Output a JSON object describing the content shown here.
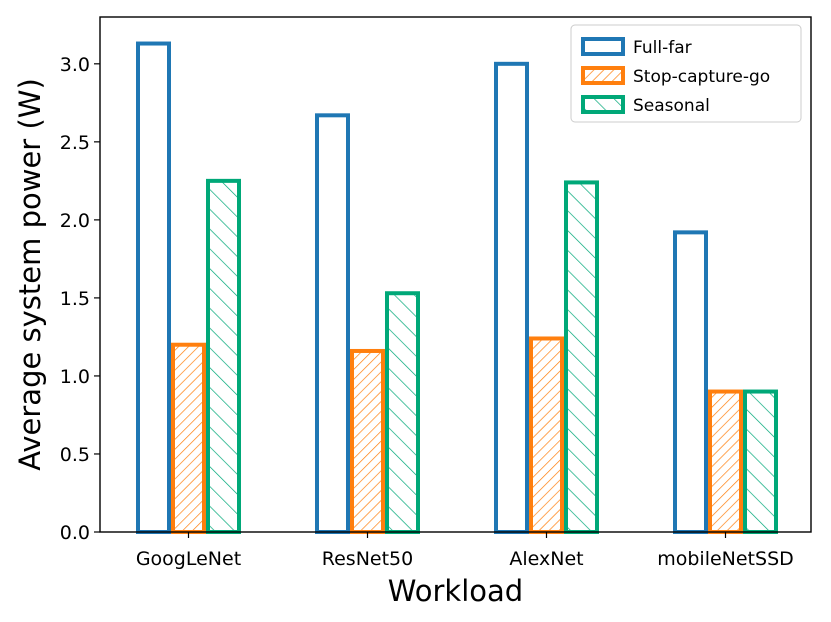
{
  "chart_data": {
    "type": "bar",
    "categories": [
      "GoogLeNet",
      "ResNet50",
      "AlexNet",
      "mobileNetSSD"
    ],
    "series": [
      {
        "name": "Full-far",
        "values": [
          3.13,
          2.67,
          3.0,
          1.92
        ],
        "color": "#1f77b4",
        "hatch": "none"
      },
      {
        "name": "Stop-capture-go",
        "values": [
          1.2,
          1.16,
          1.24,
          0.9
        ],
        "color": "#ff7f0e",
        "hatch": "forward-diagonal-dense"
      },
      {
        "name": "Seasonal",
        "values": [
          2.25,
          1.53,
          2.24,
          0.9
        ],
        "color": "#00a878",
        "hatch": "back-diagonal"
      }
    ],
    "xlabel": "Workload",
    "ylabel": "Average system power (W)",
    "ylim": [
      0,
      3.3
    ],
    "yticks": [
      "0.0",
      "0.5",
      "1.0",
      "1.5",
      "2.0",
      "2.5",
      "3.0"
    ],
    "grid": false,
    "legend_position": "top-right"
  }
}
